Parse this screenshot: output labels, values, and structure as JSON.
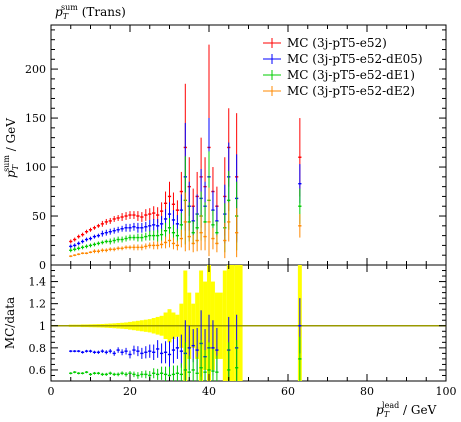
{
  "chart_data": [
    {
      "type": "scatter",
      "title": "p_T^sum (Trans)",
      "ylabel": "p_T^sum / GeV",
      "xlim": [
        0,
        100
      ],
      "ylim": [
        0,
        245
      ],
      "y_ticks": [
        0,
        50,
        100,
        150,
        200
      ],
      "legend_position": "top-right",
      "series": [
        {
          "name": "MC (3j-pT5-e52)",
          "color": "#ff0000",
          "x": [
            5,
            6,
            7,
            8,
            9,
            10,
            11,
            12,
            13,
            14,
            15,
            16,
            17,
            18,
            19,
            20,
            21,
            22,
            23,
            24,
            25,
            26,
            27,
            28,
            29,
            30,
            31,
            32,
            33,
            34,
            35,
            36,
            37,
            38,
            39,
            40,
            41,
            42,
            44,
            45,
            47,
            63
          ],
          "y": [
            24,
            26,
            29,
            31,
            34,
            36,
            38,
            40,
            42,
            44,
            45,
            47,
            48,
            49,
            50,
            51,
            51,
            50,
            49,
            51,
            52,
            53,
            51,
            55,
            63,
            70,
            62,
            56,
            75,
            120,
            80,
            60,
            70,
            90,
            80,
            120,
            75,
            60,
            70,
            120,
            90,
            110
          ],
          "err": [
            2,
            2,
            2,
            2,
            2,
            2,
            2,
            2,
            3,
            3,
            3,
            3,
            3,
            4,
            4,
            4,
            4,
            5,
            5,
            6,
            6,
            7,
            8,
            9,
            12,
            15,
            12,
            10,
            20,
            65,
            30,
            18,
            25,
            40,
            30,
            105,
            25,
            20,
            40,
            40,
            65,
            40
          ]
        },
        {
          "name": "MC (3j-pT5-e52-dE05)",
          "color": "#0000ff",
          "x": [
            5,
            6,
            7,
            8,
            9,
            10,
            11,
            12,
            13,
            14,
            15,
            16,
            17,
            18,
            19,
            20,
            21,
            22,
            23,
            24,
            25,
            26,
            27,
            28,
            29,
            30,
            31,
            32,
            33,
            34,
            35,
            36,
            37,
            38,
            39,
            40,
            41,
            42,
            44,
            45,
            47,
            63
          ],
          "y": [
            19,
            20,
            22,
            24,
            26,
            27,
            29,
            30,
            32,
            33,
            34,
            35,
            36,
            37,
            38,
            38,
            39,
            38,
            38,
            39,
            40,
            41,
            40,
            42,
            47,
            52,
            46,
            42,
            56,
            90,
            60,
            45,
            52,
            68,
            60,
            90,
            56,
            45,
            52,
            90,
            68,
            83
          ],
          "err": [
            2,
            2,
            2,
            2,
            2,
            2,
            2,
            2,
            3,
            3,
            3,
            3,
            3,
            3,
            4,
            4,
            4,
            5,
            5,
            5,
            6,
            6,
            7,
            8,
            10,
            12,
            10,
            9,
            16,
            55,
            25,
            15,
            20,
            30,
            25,
            60,
            20,
            16,
            30,
            35,
            45,
            20
          ]
        },
        {
          "name": "MC (3j-pT5-e52-dE1)",
          "color": "#00cc00",
          "x": [
            5,
            6,
            7,
            8,
            9,
            10,
            11,
            12,
            13,
            14,
            15,
            16,
            17,
            18,
            19,
            20,
            21,
            22,
            23,
            24,
            25,
            26,
            27,
            28,
            29,
            30,
            31,
            32,
            33,
            34,
            35,
            36,
            37,
            38,
            39,
            40,
            41,
            42,
            44,
            45,
            47,
            63
          ],
          "y": [
            15,
            16,
            17,
            18,
            19,
            20,
            21,
            22,
            23,
            24,
            24,
            25,
            26,
            26,
            27,
            28,
            28,
            28,
            28,
            29,
            30,
            30,
            30,
            31,
            35,
            38,
            33,
            30,
            41,
            66,
            44,
            33,
            38,
            50,
            44,
            66,
            41,
            33,
            38,
            66,
            50,
            60
          ],
          "err": [
            2,
            2,
            2,
            2,
            2,
            2,
            2,
            2,
            2,
            2,
            3,
            3,
            3,
            3,
            3,
            3,
            3,
            4,
            4,
            4,
            5,
            5,
            6,
            6,
            8,
            10,
            8,
            7,
            12,
            45,
            20,
            12,
            15,
            25,
            20,
            50,
            15,
            12,
            25,
            30,
            35,
            18
          ]
        },
        {
          "name": "MC (3j-pT5-e52-dE2)",
          "color": "#ff8800",
          "x": [
            5,
            6,
            7,
            8,
            9,
            10,
            11,
            12,
            13,
            14,
            15,
            16,
            17,
            18,
            19,
            20,
            21,
            22,
            23,
            24,
            25,
            26,
            27,
            28,
            29,
            30,
            31,
            32,
            33,
            34,
            35,
            36,
            37,
            38,
            39,
            40,
            41,
            42,
            44,
            45,
            47,
            63
          ],
          "y": [
            9,
            10,
            11,
            12,
            12,
            13,
            14,
            14,
            15,
            15,
            16,
            16,
            17,
            17,
            18,
            18,
            18,
            18,
            18,
            19,
            20,
            20,
            20,
            21,
            23,
            25,
            22,
            20,
            27,
            44,
            29,
            22,
            25,
            33,
            29,
            44,
            27,
            22,
            25,
            44,
            33,
            40
          ],
          "err": [
            1,
            1,
            1,
            1,
            1,
            1,
            2,
            2,
            2,
            2,
            2,
            2,
            2,
            2,
            2,
            2,
            3,
            3,
            3,
            3,
            3,
            4,
            4,
            4,
            6,
            7,
            6,
            5,
            9,
            30,
            14,
            9,
            11,
            18,
            14,
            35,
            11,
            9,
            18,
            20,
            25,
            12
          ]
        }
      ]
    },
    {
      "type": "scatter",
      "ylabel": "MC/data",
      "xlabel": "p_T^lead / GeV",
      "xlim": [
        0,
        100
      ],
      "ylim": [
        0.5,
        1.55
      ],
      "x_ticks": [
        0,
        20,
        40,
        60,
        80,
        100
      ],
      "y_ticks": [
        0.6,
        0.8,
        1,
        1.2,
        1.4
      ],
      "reference_line": 1,
      "reference_color": "#999900",
      "data_uncertainty_band": {
        "color": "#ffff00",
        "x": [
          5,
          6,
          7,
          8,
          9,
          10,
          11,
          12,
          13,
          14,
          15,
          16,
          17,
          18,
          19,
          20,
          21,
          22,
          23,
          24,
          25,
          26,
          27,
          28,
          29,
          30,
          31,
          32,
          33,
          34,
          35,
          36,
          37,
          38,
          39,
          40,
          41,
          42,
          44,
          45,
          47,
          63
        ],
        "half_width": [
          0.01,
          0.01,
          0.01,
          0.012,
          0.012,
          0.013,
          0.014,
          0.015,
          0.016,
          0.018,
          0.02,
          0.022,
          0.025,
          0.027,
          0.03,
          0.035,
          0.04,
          0.045,
          0.05,
          0.055,
          0.06,
          0.07,
          0.08,
          0.09,
          0.12,
          0.15,
          0.12,
          0.1,
          0.2,
          0.5,
          0.3,
          0.2,
          0.3,
          0.5,
          0.4,
          0.55,
          0.4,
          0.3,
          0.5,
          0.55,
          0.55,
          0.55
        ]
      },
      "series": [
        {
          "name": "MC (3j-pT5-e52-dE05)",
          "color": "#0000ff",
          "x": [
            5,
            6,
            7,
            8,
            9,
            10,
            11,
            12,
            13,
            14,
            15,
            16,
            17,
            18,
            19,
            20,
            21,
            22,
            23,
            24,
            25,
            26,
            27,
            28,
            29,
            30,
            31,
            32,
            33,
            34,
            35,
            36,
            37,
            38,
            39,
            40,
            41,
            42,
            45,
            47,
            63
          ],
          "y": [
            0.77,
            0.77,
            0.77,
            0.76,
            0.77,
            0.77,
            0.76,
            0.76,
            0.77,
            0.76,
            0.77,
            0.75,
            0.78,
            0.76,
            0.77,
            0.74,
            0.78,
            0.77,
            0.75,
            0.76,
            0.77,
            0.76,
            0.79,
            0.75,
            0.76,
            0.74,
            0.78,
            0.8,
            0.77,
            0.75,
            0.8,
            0.82,
            0.78,
            0.84,
            0.72,
            0.8,
            0.8,
            0.78,
            0.78,
            0.8,
            1.0
          ],
          "err": [
            0.01,
            0.01,
            0.01,
            0.012,
            0.012,
            0.013,
            0.014,
            0.015,
            0.016,
            0.018,
            0.02,
            0.022,
            0.025,
            0.027,
            0.03,
            0.035,
            0.04,
            0.045,
            0.05,
            0.055,
            0.06,
            0.07,
            0.08,
            0.09,
            0.1,
            0.12,
            0.12,
            0.1,
            0.15,
            0.3,
            0.2,
            0.15,
            0.2,
            0.3,
            0.25,
            0.3,
            0.25,
            0.2,
            0.3,
            0.3,
            0.25
          ]
        },
        {
          "name": "MC (3j-pT5-e52-dE1)",
          "color": "#00cc00",
          "x": [
            5,
            6,
            7,
            8,
            9,
            10,
            11,
            12,
            13,
            14,
            15,
            16,
            17,
            18,
            19,
            20,
            21,
            22,
            23,
            24,
            25,
            26,
            27,
            28,
            29,
            30,
            31,
            32,
            33,
            34,
            35,
            36,
            37,
            38,
            39,
            40,
            41,
            42,
            45,
            47,
            63
          ],
          "y": [
            0.57,
            0.58,
            0.57,
            0.57,
            0.58,
            0.56,
            0.57,
            0.57,
            0.56,
            0.56,
            0.57,
            0.56,
            0.56,
            0.57,
            0.56,
            0.57,
            0.56,
            0.55,
            0.56,
            0.56,
            0.55,
            0.57,
            0.56,
            0.57,
            0.56,
            0.55,
            0.56,
            0.57,
            0.56,
            0.6,
            0.58,
            0.6,
            0.57,
            0.62,
            0.58,
            0.6,
            0.59,
            0.58,
            0.6,
            0.62,
            0.7
          ],
          "err": [
            0.01,
            0.01,
            0.01,
            0.01,
            0.01,
            0.012,
            0.012,
            0.012,
            0.014,
            0.014,
            0.015,
            0.015,
            0.017,
            0.017,
            0.02,
            0.02,
            0.025,
            0.03,
            0.03,
            0.035,
            0.04,
            0.045,
            0.05,
            0.06,
            0.07,
            0.08,
            0.08,
            0.07,
            0.1,
            0.25,
            0.15,
            0.1,
            0.15,
            0.25,
            0.2,
            0.25,
            0.2,
            0.15,
            0.25,
            0.25,
            0.2
          ]
        }
      ]
    }
  ],
  "labels": {
    "title_main": "p",
    "title_sub": "T",
    "title_sup": "sum",
    "title_rest": " (Trans)",
    "ylabel_main": "p",
    "ylabel_sub": "T",
    "ylabel_sup": "sum",
    "ylabel_rest": " / GeV",
    "ratio_ylabel": "MC/data",
    "xlabel_main": "p",
    "xlabel_sub": "T",
    "xlabel_sup": "lead",
    "xlabel_rest": " / GeV"
  }
}
